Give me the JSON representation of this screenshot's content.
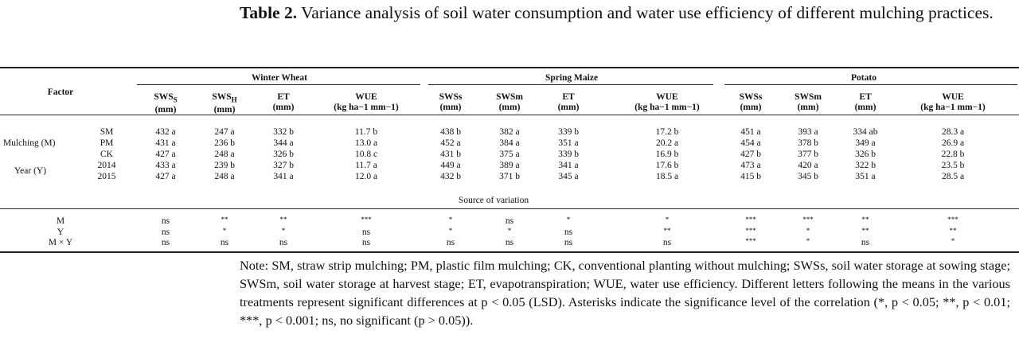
{
  "caption": {
    "label": "Table 2.",
    "text": "Variance analysis of soil water consumption and water use efficiency of different mulching practices."
  },
  "table": {
    "factor_header": "Factor",
    "groups": [
      "Winter Wheat",
      "Spring Maize",
      "Potato"
    ],
    "columns": [
      {
        "name": "SWS",
        "sub": "S",
        "unit": "(mm)"
      },
      {
        "name": "SWS",
        "sub": "H",
        "unit": "(mm)"
      },
      {
        "name": "ET",
        "sub": "",
        "unit": "(mm)"
      },
      {
        "name": "WUE",
        "sub": "",
        "unit": "(kg ha−1 mm−1)"
      },
      {
        "name": "SWSs",
        "sub": "",
        "unit": "(mm)"
      },
      {
        "name": "SWSm",
        "sub": "",
        "unit": "(mm)"
      },
      {
        "name": "ET",
        "sub": "",
        "unit": "(mm)"
      },
      {
        "name": "WUE",
        "sub": "",
        "unit": "(kg ha−1 mm−1)"
      },
      {
        "name": "SWSs",
        "sub": "",
        "unit": "(mm)"
      },
      {
        "name": "SWSm",
        "sub": "",
        "unit": "(mm)"
      },
      {
        "name": "ET",
        "sub": "",
        "unit": "(mm)"
      },
      {
        "name": "WUE",
        "sub": "",
        "unit": "(kg ha−1 mm−1)"
      }
    ],
    "factor_labels": [
      "Mulching (M)",
      "Year (Y)"
    ],
    "rows": [
      {
        "level": "SM",
        "cells": [
          "432 a",
          "247 a",
          "332 b",
          "11.7 b",
          "438 b",
          "382 a",
          "339 b",
          "17.2 b",
          "451 a",
          "393 a",
          "334 ab",
          "28.3 a"
        ]
      },
      {
        "level": "PM",
        "cells": [
          "431 a",
          "236 b",
          "344 a",
          "13.0 a",
          "452 a",
          "384 a",
          "351 a",
          "20.2 a",
          "454 a",
          "378 b",
          "349 a",
          "26.9 a"
        ]
      },
      {
        "level": "CK",
        "cells": [
          "427 a",
          "248 a",
          "326 b",
          "10.8 c",
          "431 b",
          "375 a",
          "339 b",
          "16.9 b",
          "427 b",
          "377 b",
          "326 b",
          "22.8 b"
        ]
      },
      {
        "level": "2014",
        "cells": [
          "433 a",
          "239 b",
          "327 b",
          "11.7 a",
          "449 a",
          "389 a",
          "341 a",
          "17.6 b",
          "473 a",
          "420 a",
          "322 b",
          "23.5 b"
        ]
      },
      {
        "level": "2015",
        "cells": [
          "427 a",
          "248 a",
          "341 a",
          "12.0 a",
          "432 b",
          "371 b",
          "345 a",
          "18.5 a",
          "415 b",
          "345 b",
          "351 a",
          "28.5 a"
        ]
      }
    ],
    "source_header": "Source of variation",
    "source_rows": [
      {
        "label": "M",
        "cells": [
          "ns",
          "**",
          "**",
          "***",
          "*",
          "ns",
          "*",
          "*",
          "***",
          "***",
          "**",
          "***"
        ]
      },
      {
        "label": "Y",
        "cells": [
          "ns",
          "*",
          "*",
          "ns",
          "*",
          "*",
          "ns",
          "**",
          "***",
          "*",
          "**",
          "**"
        ]
      },
      {
        "label": "M × Y",
        "cells": [
          "ns",
          "ns",
          "ns",
          "ns",
          "ns",
          "ns",
          "ns",
          "ns",
          "***",
          "*",
          "ns",
          "*"
        ]
      }
    ]
  },
  "note": "Note: SM, straw strip mulching; PM, plastic film mulching; CK, conventional planting without mulching; SWSs, soil water storage at sowing stage; SWSm, soil water storage at harvest stage; ET, evapotranspiration; WUE, water use efficiency. Different letters following the means in the various treatments represent significant differences at p < 0.05 (LSD). Asterisks indicate the significance level of the correlation (*, p < 0.05; **, p < 0.01; ***, p < 0.001; ns, no significant (p > 0.05))."
}
